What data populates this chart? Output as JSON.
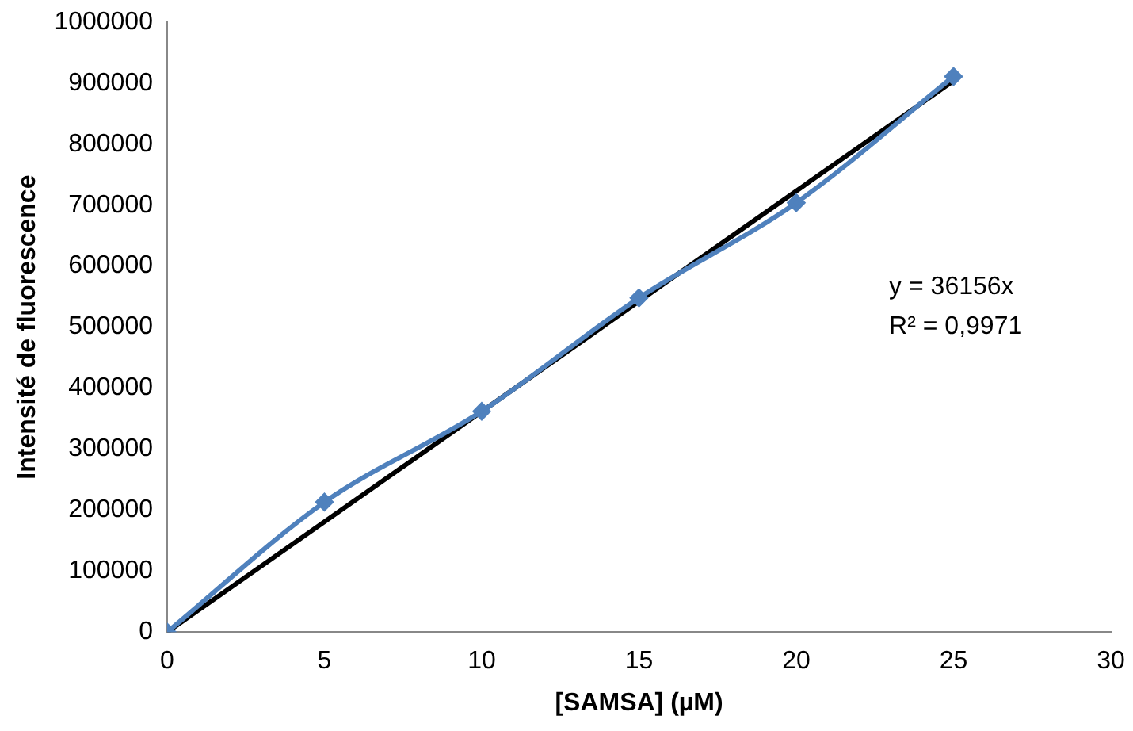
{
  "chart_data": {
    "type": "scatter",
    "xlabel": "[SAMSA] (µM)",
    "ylabel": "Intensité de fluorescence",
    "xlim": [
      0,
      30
    ],
    "xticks": [
      0,
      5,
      10,
      15,
      20,
      25,
      30
    ],
    "ylim": [
      0,
      1000000
    ],
    "yticks": [
      0,
      100000,
      200000,
      300000,
      400000,
      500000,
      600000,
      700000,
      800000,
      900000,
      1000000
    ],
    "grid": false,
    "legend": false,
    "series": [
      {
        "type": "line",
        "color": "#4f81bd",
        "marker": "diamond",
        "x": [
          0,
          5,
          10,
          15,
          20,
          25
        ],
        "values": [
          0,
          213000,
          362000,
          548000,
          704000,
          911000
        ]
      },
      {
        "type": "line",
        "color": "#000000",
        "marker": "none",
        "x": [
          0,
          25
        ],
        "values": [
          0,
          904000
        ]
      }
    ],
    "annotations": [
      "y = 36156x",
      "R² = 0,9971"
    ]
  }
}
